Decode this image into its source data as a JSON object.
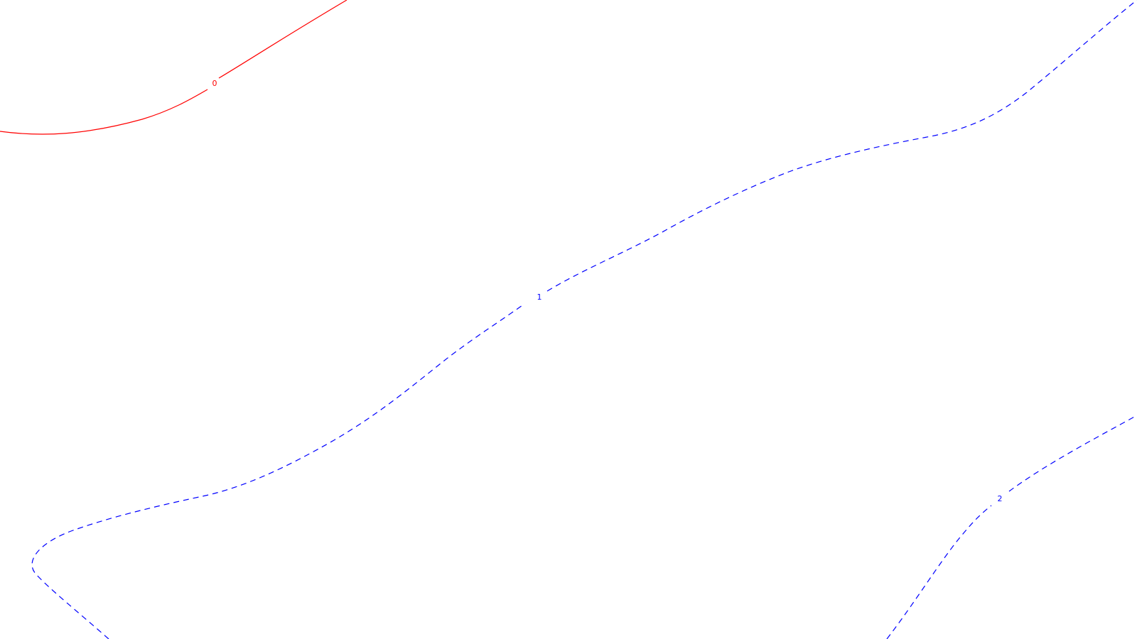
{
  "contours": [
    {
      "id": "contour-0",
      "label": "0",
      "color": "#ff0000",
      "style": "solid"
    },
    {
      "id": "contour-1",
      "label": "1",
      "color": "#0000ff",
      "style": "dashed"
    },
    {
      "id": "contour-2",
      "label": "2",
      "color": "#0000ff",
      "style": "dashed"
    }
  ]
}
